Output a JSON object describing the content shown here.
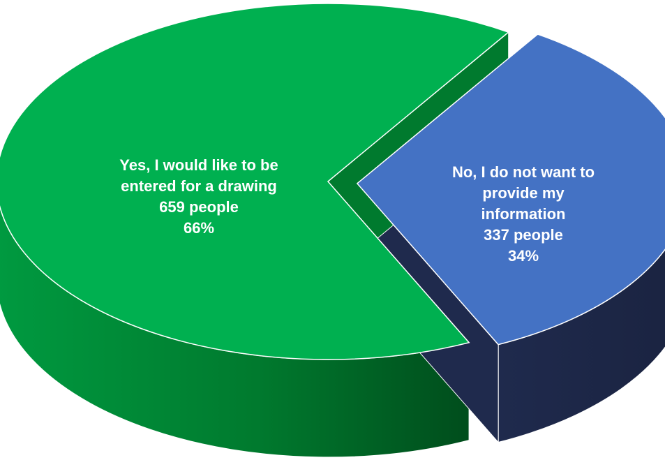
{
  "chart_data": {
    "type": "pie",
    "title": "",
    "categories": [
      "Yes, I would like to be entered for a drawing",
      "No, I do not want to provide my information"
    ],
    "values": [
      659,
      337
    ],
    "units": "people",
    "percent": [
      66,
      34
    ],
    "exploded": [
      false,
      true
    ],
    "colors": [
      "#00b050",
      "#4472c4"
    ],
    "side_colors": [
      "#007a2e",
      "#1f2a4d"
    ],
    "labels": [
      {
        "lines": [
          "Yes, I would like to be",
          "entered for a drawing",
          "659 people",
          "66%"
        ]
      },
      {
        "lines": [
          "No, I do not want to",
          "provide my",
          "information",
          "337 people",
          "34%"
        ]
      }
    ]
  }
}
